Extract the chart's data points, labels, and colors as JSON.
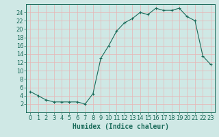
{
  "x": [
    0,
    1,
    2,
    3,
    4,
    5,
    6,
    7,
    8,
    9,
    10,
    11,
    12,
    13,
    14,
    15,
    16,
    17,
    18,
    19,
    20,
    21,
    22,
    23
  ],
  "y": [
    5,
    4,
    3,
    2.5,
    2.5,
    2.5,
    2.5,
    2,
    4.5,
    13,
    16,
    19.5,
    21.5,
    22.5,
    24,
    23.5,
    25,
    24.5,
    24.5,
    25,
    23,
    22,
    13.5,
    11.5
  ],
  "line_color": "#1a6b5a",
  "marker": "+",
  "bg_color": "#cfe8e5",
  "grid_major_color": "#e8b4b4",
  "grid_minor_color": "#e8b4b4",
  "xlabel": "Humidex (Indice chaleur)",
  "xlim": [
    -0.5,
    23.5
  ],
  "ylim": [
    0,
    26
  ],
  "yticks": [
    2,
    4,
    6,
    8,
    10,
    12,
    14,
    16,
    18,
    20,
    22,
    24
  ],
  "xticks": [
    0,
    1,
    2,
    3,
    4,
    5,
    6,
    7,
    8,
    9,
    10,
    11,
    12,
    13,
    14,
    15,
    16,
    17,
    18,
    19,
    20,
    21,
    22,
    23
  ],
  "xlabel_fontsize": 7,
  "tick_fontsize": 6,
  "label_color": "#1a6b5a",
  "spine_color": "#1a6b5a",
  "line_width": 0.8,
  "marker_size": 3
}
